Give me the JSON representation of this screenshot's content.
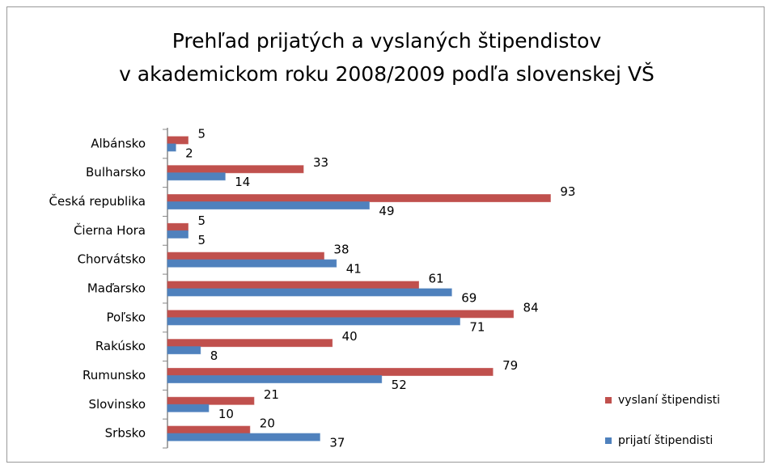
{
  "chart_data": {
    "type": "bar",
    "orientation": "horizontal",
    "title": [
      "Prehľad prijatých a vyslaných štipendistov",
      "v akademickom roku 2008/2009 podľa slovenskej VŠ"
    ],
    "categories": [
      "Albánsko",
      "Bulharsko",
      "Česká republika",
      "Čierna Hora",
      "Chorvátsko",
      "Maďarsko",
      "Poľsko",
      "Rakúsko",
      "Rumunsko",
      "Slovinsko",
      "Srbsko"
    ],
    "series": [
      {
        "name": "vyslaní štipendisti",
        "color": "#c0504d",
        "values": [
          5,
          33,
          93,
          5,
          38,
          61,
          84,
          40,
          79,
          21,
          20
        ]
      },
      {
        "name": "prijatí štipendisti",
        "color": "#4f81bd",
        "values": [
          2,
          14,
          49,
          5,
          41,
          69,
          71,
          8,
          52,
          10,
          37
        ]
      }
    ],
    "xlim": [
      0,
      100
    ],
    "legend": "right"
  }
}
